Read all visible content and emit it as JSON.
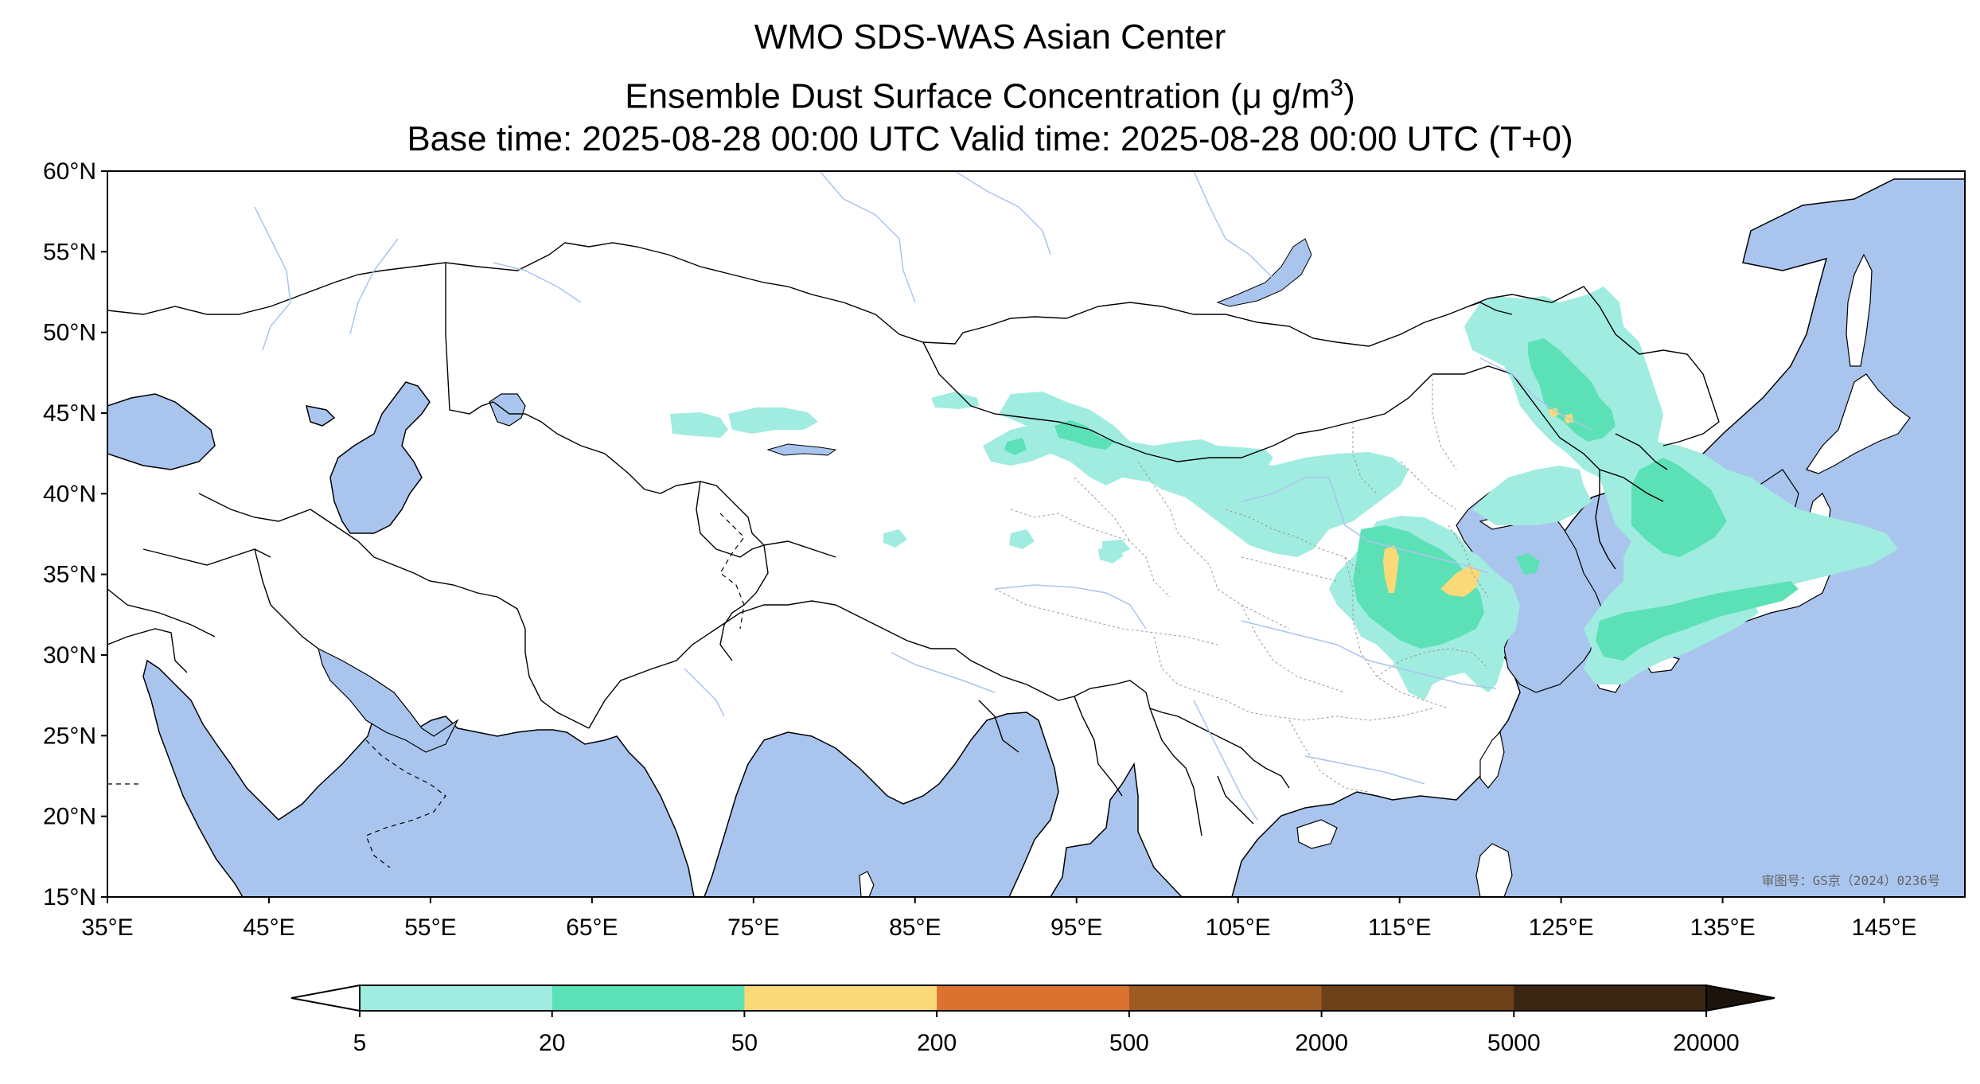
{
  "header": {
    "title_line1": "WMO SDS-WAS Asian Center",
    "title_line2_prefix": "Ensemble Dust Surface Concentration (μ g/m",
    "title_line2_sup": "3",
    "title_line2_suffix": ")",
    "title_line3": "Base time: 2025-08-28 00:00 UTC Valid time: 2025-08-28 00:00 UTC (T+0)"
  },
  "map": {
    "lon_range": [
      35,
      150
    ],
    "lat_range": [
      15,
      60
    ],
    "lon_ticks": [
      35,
      45,
      55,
      65,
      75,
      85,
      95,
      105,
      115,
      125,
      135,
      145
    ],
    "lat_ticks": [
      15,
      20,
      25,
      30,
      35,
      40,
      45,
      50,
      55,
      60
    ],
    "lon_tick_labels": [
      "35°E",
      "45°E",
      "55°E",
      "65°E",
      "75°E",
      "85°E",
      "95°E",
      "105°E",
      "115°E",
      "125°E",
      "135°E",
      "145°E"
    ],
    "lat_tick_labels": [
      "15°N",
      "20°N",
      "25°N",
      "30°N",
      "35°N",
      "40°N",
      "45°N",
      "50°N",
      "55°N",
      "60°N"
    ],
    "ocean_color": "#a9c5ee",
    "land_color": "#ffffff",
    "approval_number": "审图号：GS京（2024）0236号"
  },
  "colorbar": {
    "tick_labels": [
      "5",
      "20",
      "50",
      "200",
      "500",
      "2000",
      "5000",
      "20000"
    ],
    "colors": [
      "#a0ece0",
      "#5ce1b6",
      "#fad978",
      "#db722f",
      "#9b5b22",
      "#6c4119",
      "#3a2613"
    ],
    "under_color": "#ffffff",
    "over_color": "#1c140c"
  }
}
